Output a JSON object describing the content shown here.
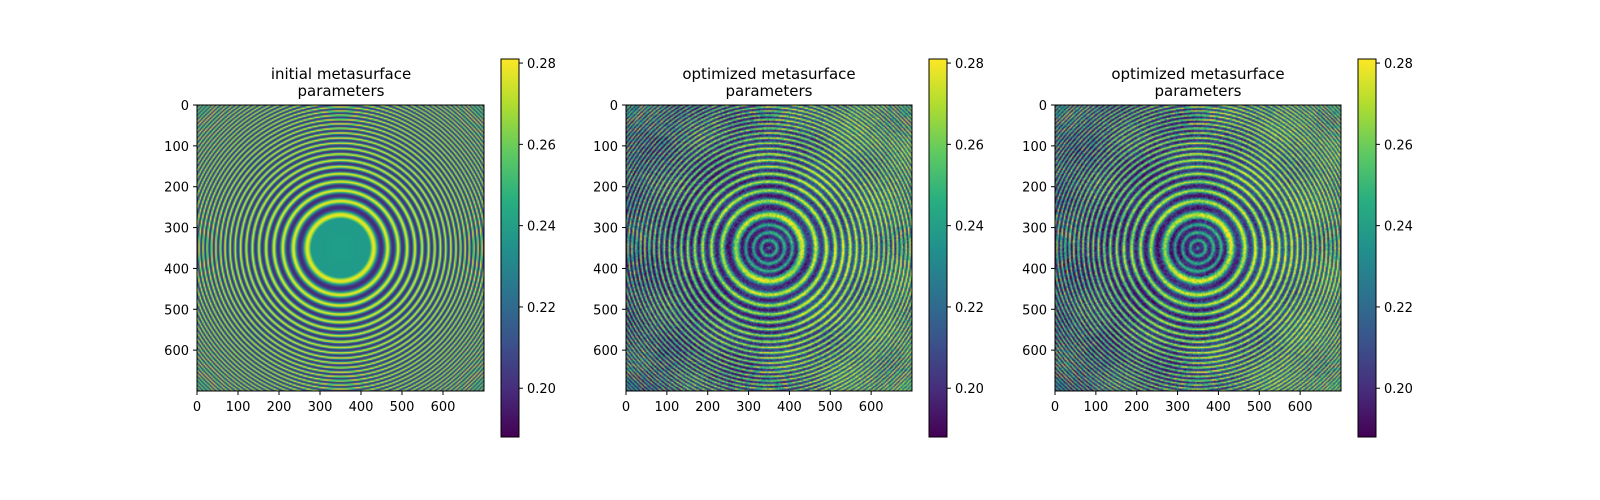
{
  "chart_data": [
    {
      "type": "heatmap",
      "title_line1": "initial metasurface",
      "title_line2": "parameters",
      "xlabel": "",
      "ylabel": "",
      "xlim": [
        0,
        700
      ],
      "ylim": [
        700,
        0
      ],
      "x_ticks": [
        0,
        100,
        200,
        300,
        400,
        500,
        600
      ],
      "y_ticks": [
        0,
        100,
        200,
        300,
        400,
        500,
        600
      ],
      "colormap": "viridis",
      "color_range": [
        0.188,
        0.281
      ],
      "colorbar_ticks": [
        0.2,
        0.22,
        0.24,
        0.26,
        0.28
      ],
      "pattern": "concentric rings centered near (350, 350); uniform center disk radius ~70",
      "center": [
        350,
        350
      ]
    },
    {
      "type": "heatmap",
      "title_line1": "optimized metasurface",
      "title_line2": "parameters",
      "xlabel": "",
      "ylabel": "",
      "xlim": [
        0,
        700
      ],
      "ylim": [
        700,
        0
      ],
      "x_ticks": [
        0,
        100,
        200,
        300,
        400,
        500,
        600
      ],
      "y_ticks": [
        0,
        100,
        200,
        300,
        400,
        500,
        600
      ],
      "colormap": "viridis",
      "color_range": [
        0.188,
        0.281
      ],
      "colorbar_ticks": [
        0.2,
        0.22,
        0.24,
        0.26,
        0.28
      ],
      "pattern": "concentric rings with noisy speckle, brighter rings toward right side, small inner rings in center",
      "center": [
        350,
        350
      ]
    },
    {
      "type": "heatmap",
      "title_line1": "optimized metasurface",
      "title_line2": "parameters",
      "xlabel": "",
      "ylabel": "",
      "xlim": [
        0,
        700
      ],
      "ylim": [
        700,
        0
      ],
      "x_ticks": [
        0,
        100,
        200,
        300,
        400,
        500,
        600
      ],
      "y_ticks": [
        0,
        100,
        200,
        300,
        400,
        500,
        600
      ],
      "colormap": "viridis",
      "color_range": [
        0.188,
        0.281
      ],
      "colorbar_ticks": [
        0.2,
        0.22,
        0.24,
        0.26,
        0.28
      ],
      "pattern": "concentric rings with noisy speckle, brighter rings toward right side, small inner rings in center",
      "center": [
        350,
        350
      ]
    }
  ]
}
